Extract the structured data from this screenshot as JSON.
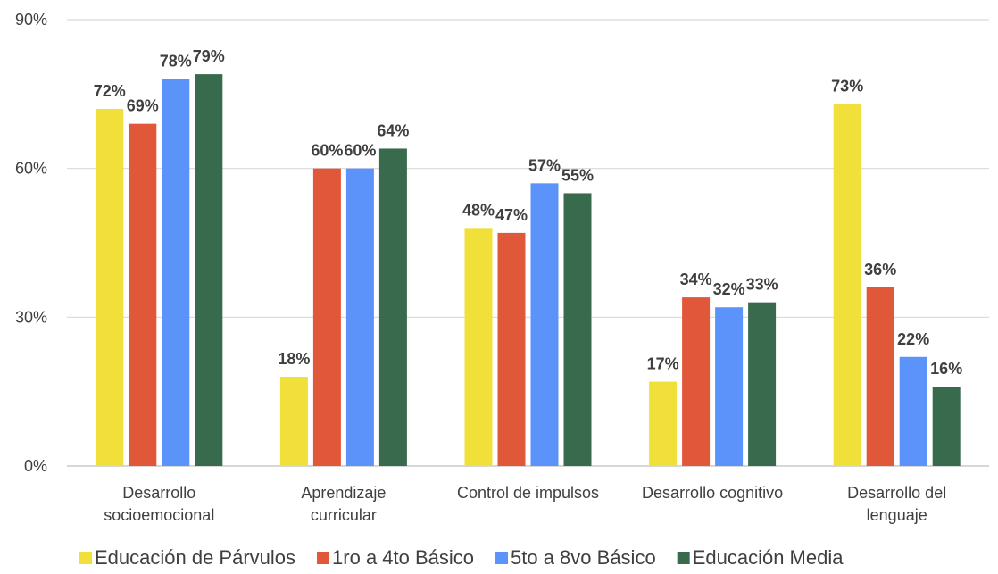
{
  "chart_data": {
    "type": "bar",
    "title": "",
    "xlabel": "",
    "ylabel": "",
    "ylim": [
      0,
      90
    ],
    "yticks": [
      "0%",
      "30%",
      "60%",
      "90%"
    ],
    "ytick_values": [
      0,
      30,
      60,
      90
    ],
    "grid": true,
    "legend_position": "bottom",
    "categories": [
      [
        "Desarrollo",
        "socioemocional"
      ],
      [
        "Aprendizaje",
        "curricular"
      ],
      [
        "Control de impulsos"
      ],
      [
        "Desarrollo cognitivo"
      ],
      [
        "Desarrollo del",
        "lenguaje"
      ]
    ],
    "series": [
      {
        "name": "Educación de Párvulos",
        "color": "#f2e03a",
        "values": [
          72,
          18,
          48,
          17,
          73
        ],
        "labels": [
          "72%",
          "18%",
          "48%",
          "17%",
          "73%"
        ]
      },
      {
        "name": "1ro a 4to Básico",
        "color": "#e0573a",
        "values": [
          69,
          60,
          47,
          34,
          36
        ],
        "labels": [
          "69%",
          "60%",
          "47%",
          "34%",
          "36%"
        ]
      },
      {
        "name": "5to a 8vo Básico",
        "color": "#5b93fb",
        "values": [
          78,
          60,
          57,
          32,
          22
        ],
        "labels": [
          "78%",
          "60%",
          "57%",
          "32%",
          "22%"
        ]
      },
      {
        "name": "Educación Media",
        "color": "#386a4d",
        "values": [
          79,
          64,
          55,
          33,
          16
        ],
        "labels": [
          "79%",
          "64%",
          "55%",
          "33%",
          "16%"
        ]
      }
    ]
  }
}
